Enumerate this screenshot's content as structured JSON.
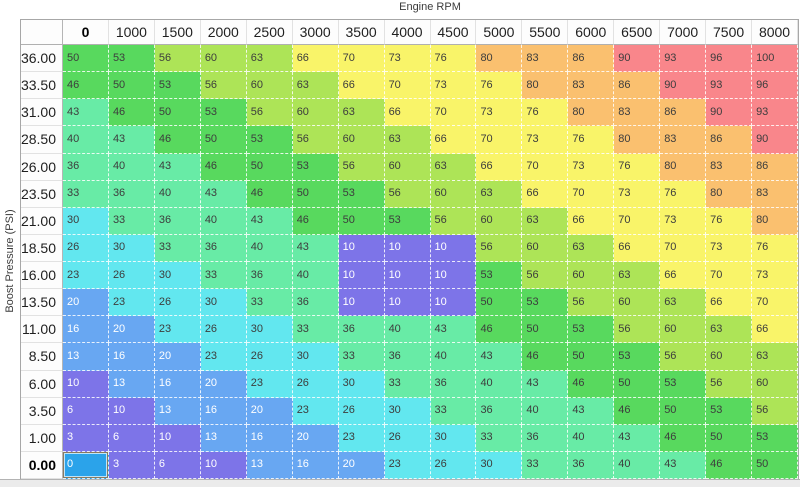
{
  "axes": {
    "x_title": "Engine RPM",
    "y_title": "Boost Pressure (PSI)"
  },
  "table": {
    "column_headers": [
      "0",
      "1000",
      "1500",
      "2000",
      "2500",
      "3000",
      "3500",
      "4000",
      "4500",
      "5000",
      "5500",
      "6000",
      "6500",
      "7000",
      "7500",
      "8000"
    ],
    "row_headers": [
      "36.00",
      "33.50",
      "31.00",
      "28.50",
      "26.00",
      "23.50",
      "21.00",
      "18.50",
      "16.00",
      "13.50",
      "11.00",
      "8.50",
      "6.00",
      "3.50",
      "1.00",
      "0.00"
    ],
    "selected": {
      "row_header": "0.00",
      "column_header": "0",
      "value": 0
    },
    "colors": {
      "selected_cell_bg": "#2ba3ea",
      "selected_cell_border": "#8a7a60",
      "grid_line": "#ffffff",
      "scale": [
        {
          "min": 0,
          "max": 0,
          "bg": "#2ba3ea",
          "fg": "#ffffff"
        },
        {
          "min": 1,
          "max": 12,
          "bg": "#7d74e8",
          "fg": "#ffffff"
        },
        {
          "min": 13,
          "max": 22,
          "bg": "#68a7f2",
          "fg": "#ffffff"
        },
        {
          "min": 23,
          "max": 32,
          "bg": "#62e7ef",
          "fg": "#3d3d3d"
        },
        {
          "min": 33,
          "max": 45,
          "bg": "#68eba6",
          "fg": "#3d3d3d"
        },
        {
          "min": 46,
          "max": 55,
          "bg": "#58d95e",
          "fg": "#3d3d3d"
        },
        {
          "min": 56,
          "max": 65,
          "bg": "#ade457",
          "fg": "#3d3d3d"
        },
        {
          "min": 66,
          "max": 79,
          "bg": "#f9f469",
          "fg": "#3d3d3d"
        },
        {
          "min": 80,
          "max": 89,
          "bg": "#fac06f",
          "fg": "#3d3d3d"
        },
        {
          "min": 90,
          "max": 100,
          "bg": "#f9868b",
          "fg": "#3d3d3d"
        }
      ]
    }
  },
  "chart_data": {
    "type": "heatmap",
    "title": "",
    "xlabel": "Engine RPM",
    "ylabel": "Boost Pressure (PSI)",
    "x": [
      "0",
      "1000",
      "1500",
      "2000",
      "2500",
      "3000",
      "3500",
      "4000",
      "4500",
      "5000",
      "5500",
      "6000",
      "6500",
      "7000",
      "7500",
      "8000"
    ],
    "y": [
      "36.00",
      "33.50",
      "31.00",
      "28.50",
      "26.00",
      "23.50",
      "21.00",
      "18.50",
      "16.00",
      "13.50",
      "11.00",
      "8.50",
      "6.00",
      "3.50",
      "1.00",
      "0.00"
    ],
    "values": [
      [
        50,
        53,
        56,
        60,
        63,
        66,
        70,
        73,
        76,
        80,
        83,
        86,
        90,
        93,
        96,
        100
      ],
      [
        46,
        50,
        53,
        56,
        60,
        63,
        66,
        70,
        73,
        76,
        80,
        83,
        86,
        90,
        93,
        96
      ],
      [
        43,
        46,
        50,
        53,
        56,
        60,
        63,
        66,
        70,
        73,
        76,
        80,
        83,
        86,
        90,
        93
      ],
      [
        40,
        43,
        46,
        50,
        53,
        56,
        60,
        63,
        66,
        70,
        73,
        76,
        80,
        83,
        86,
        90
      ],
      [
        36,
        40,
        43,
        46,
        50,
        53,
        56,
        60,
        63,
        66,
        70,
        73,
        76,
        80,
        83,
        86
      ],
      [
        33,
        36,
        40,
        43,
        46,
        50,
        53,
        56,
        60,
        63,
        66,
        70,
        73,
        76,
        80,
        83
      ],
      [
        30,
        33,
        36,
        40,
        43,
        46,
        50,
        53,
        56,
        60,
        63,
        66,
        70,
        73,
        76,
        80
      ],
      [
        26,
        30,
        33,
        36,
        40,
        43,
        10,
        10,
        10,
        56,
        60,
        63,
        66,
        70,
        73,
        76
      ],
      [
        23,
        26,
        30,
        33,
        36,
        40,
        10,
        10,
        10,
        53,
        56,
        60,
        63,
        66,
        70,
        73
      ],
      [
        20,
        23,
        26,
        30,
        33,
        36,
        10,
        10,
        10,
        50,
        53,
        56,
        60,
        63,
        66,
        70
      ],
      [
        16,
        20,
        23,
        26,
        30,
        33,
        36,
        40,
        43,
        46,
        50,
        53,
        56,
        60,
        63,
        66
      ],
      [
        13,
        16,
        20,
        23,
        26,
        30,
        33,
        36,
        40,
        43,
        46,
        50,
        53,
        56,
        60,
        63
      ],
      [
        10,
        13,
        16,
        20,
        23,
        26,
        30,
        33,
        36,
        40,
        43,
        46,
        50,
        53,
        56,
        60
      ],
      [
        6,
        10,
        13,
        16,
        20,
        23,
        26,
        30,
        33,
        36,
        40,
        43,
        46,
        50,
        53,
        56
      ],
      [
        3,
        6,
        10,
        13,
        16,
        20,
        23,
        26,
        30,
        33,
        36,
        40,
        43,
        46,
        50,
        53
      ],
      [
        0,
        3,
        6,
        10,
        13,
        16,
        20,
        23,
        26,
        30,
        33,
        36,
        40,
        43,
        46,
        50
      ]
    ]
  }
}
